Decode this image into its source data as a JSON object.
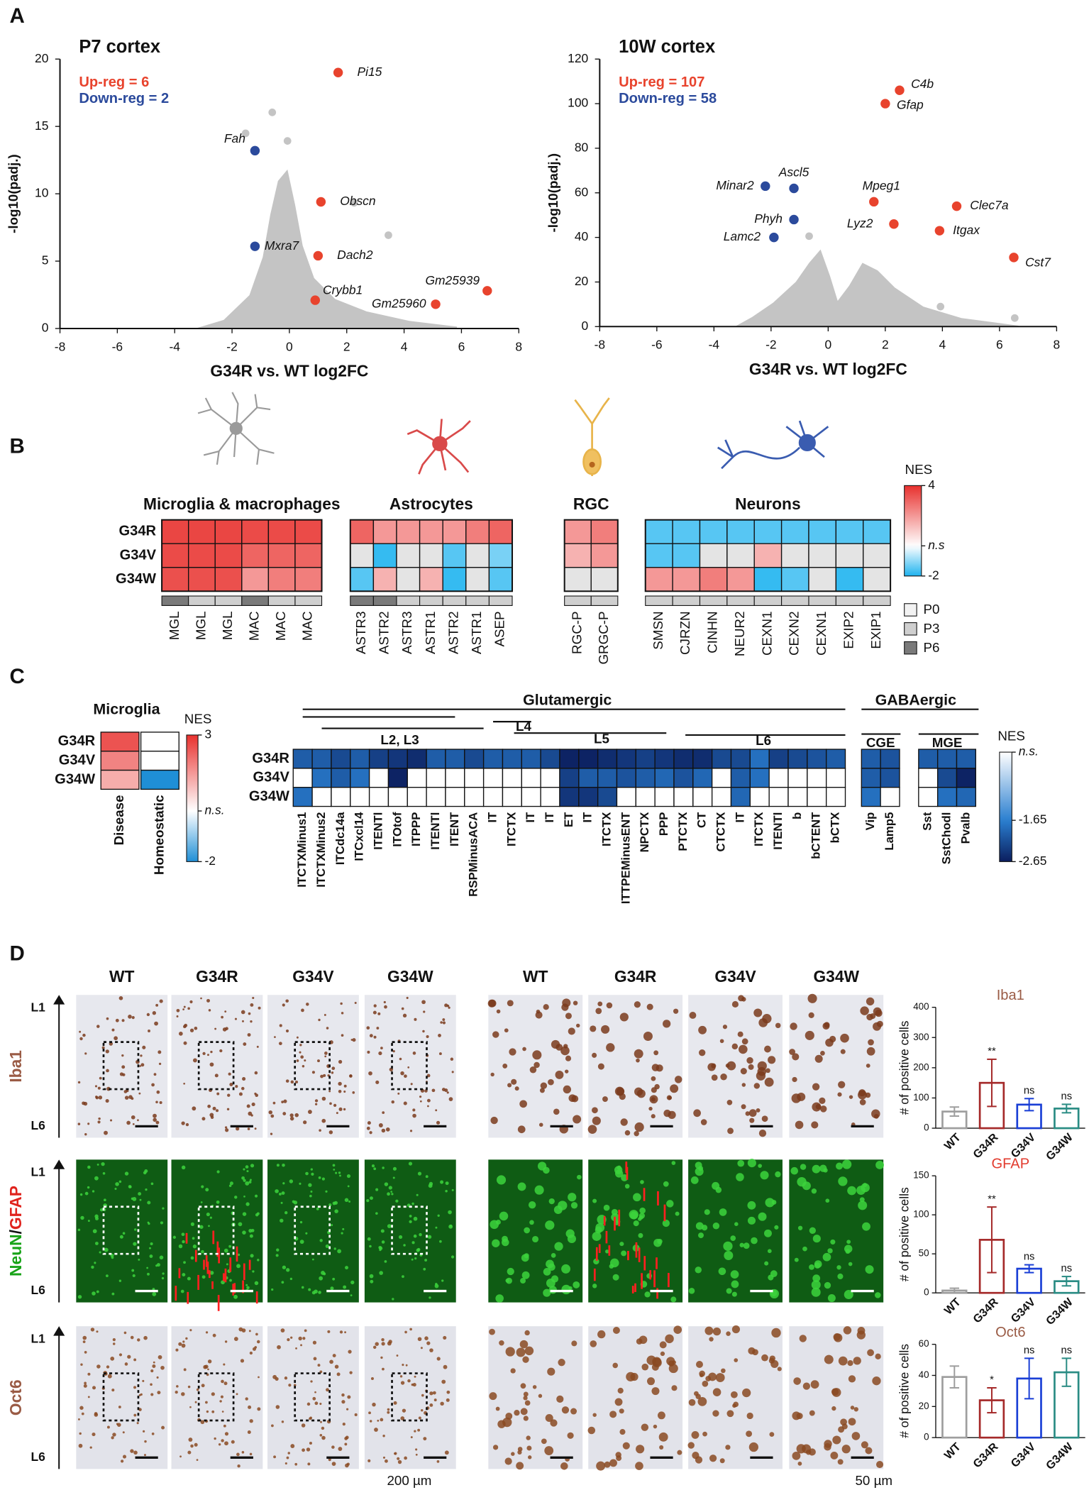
{
  "panels": [
    "A",
    "B",
    "C",
    "D"
  ],
  "chart_data": [
    {
      "type": "scatter",
      "title": "P7 cortex",
      "annotations": [
        "Up-reg = 6",
        "Down-reg = 2"
      ],
      "x_label": "G34R vs. WT log2FC",
      "y_label": "-log10(padj.)",
      "xlim": [
        -8,
        8
      ],
      "xticks": [
        -8,
        -6,
        -4,
        -2,
        0,
        2,
        4,
        6,
        8
      ],
      "ylim": [
        0,
        20
      ],
      "yticks": [
        0,
        5,
        10,
        15,
        20
      ],
      "series": [
        {
          "color": "#e8432d",
          "x": [
            1.7,
            1.1,
            1.0,
            0.9,
            6.9,
            5.1
          ],
          "values": [
            19.0,
            9.4,
            5.4,
            2.1,
            2.8,
            1.8
          ],
          "point_labels": [
            "Pi15",
            "Obscn",
            "Dach2",
            "Crybb1",
            "Gm25939",
            "Gm25960"
          ]
        },
        {
          "color": "#2b4a9c",
          "x": [
            -1.2,
            -1.2
          ],
          "values": [
            13.2,
            6.1
          ],
          "point_labels": [
            "Fah",
            "Mxra7"
          ]
        }
      ]
    },
    {
      "type": "scatter",
      "title": "10W cortex",
      "annotations": [
        "Up-reg = 107",
        "Down-reg = 58"
      ],
      "x_label": "G34R vs. WT log2FC",
      "y_label": "-log10(padj.)",
      "xlim": [
        -8,
        8
      ],
      "xticks": [
        -8,
        -6,
        -4,
        -2,
        0,
        2,
        4,
        6,
        8
      ],
      "ylim": [
        0,
        120
      ],
      "yticks": [
        0,
        20,
        40,
        60,
        80,
        100,
        120
      ],
      "series": [
        {
          "color": "#e8432d",
          "x": [
            2.5,
            2.0,
            1.6,
            2.3,
            4.5,
            3.9,
            6.5
          ],
          "values": [
            106,
            100,
            56,
            46,
            54,
            43,
            31
          ],
          "point_labels": [
            "C4b",
            "Gfap",
            "Mpeg1",
            "Lyz2",
            "Clec7a",
            "Itgax",
            "Cst7"
          ]
        },
        {
          "color": "#2b4a9c",
          "x": [
            -2.2,
            -1.2,
            -1.2,
            -1.9
          ],
          "values": [
            63,
            62,
            48,
            40
          ],
          "point_labels": [
            "Minar2",
            "Ascl5",
            "Phyh",
            "Lamc2"
          ]
        }
      ]
    },
    {
      "type": "bar",
      "title": "Iba1",
      "title_color": "#9a5b45",
      "y_label": "# of positive cells",
      "categories": [
        "WT",
        "G34R",
        "G34V",
        "G34W"
      ],
      "values": [
        55,
        150,
        78,
        65
      ],
      "errors": [
        15,
        78,
        20,
        14
      ],
      "annotations": [
        null,
        "**",
        "ns",
        "ns"
      ],
      "colors": [
        "#9e9e9e",
        "#a52a2a",
        "#1a3fd6",
        "#2a8c84"
      ],
      "ylim": [
        0,
        400
      ],
      "yticks": [
        0,
        100,
        200,
        300,
        400
      ]
    },
    {
      "type": "bar",
      "title": "GFAP",
      "title_color": "#e23b2e",
      "y_label": "# of positive cells",
      "categories": [
        "WT",
        "G34R",
        "G34V",
        "G34W"
      ],
      "values": [
        3,
        68,
        31,
        15
      ],
      "errors": [
        3,
        42,
        5,
        6
      ],
      "annotations": [
        null,
        "**",
        "ns",
        "ns"
      ],
      "colors": [
        "#9e9e9e",
        "#a52a2a",
        "#1a3fd6",
        "#2a8c84"
      ],
      "ylim": [
        0,
        150
      ],
      "yticks": [
        0,
        50,
        100,
        150
      ]
    },
    {
      "type": "bar",
      "title": "Oct6",
      "title_color": "#9a5b45",
      "y_label": "# of positive cells",
      "categories": [
        "WT",
        "G34R",
        "G34V",
        "G34W"
      ],
      "values": [
        39,
        24,
        38,
        42
      ],
      "errors": [
        7,
        8,
        13,
        9
      ],
      "annotations": [
        null,
        "*",
        "ns",
        "ns"
      ],
      "colors": [
        "#9e9e9e",
        "#a52a2a",
        "#1a3fd6",
        "#2a8c84"
      ],
      "ylim": [
        0,
        60
      ],
      "yticks": [
        0,
        20,
        40,
        60
      ]
    }
  ],
  "heatmap_b": {
    "rows": [
      "G34R",
      "G34V",
      "G34W"
    ],
    "groups": [
      {
        "title": "Microglia & macrophages",
        "columns": [
          "MGL",
          "MGL",
          "MGL",
          "MAC",
          "MAC",
          "MAC"
        ],
        "stages": [
          "P6",
          "P3",
          "P3",
          "P6",
          "P3",
          "P3"
        ],
        "values": [
          [
            3.6,
            3.6,
            3.6,
            3.5,
            3.5,
            3.5
          ],
          [
            3.5,
            3.5,
            3.5,
            3.0,
            3.0,
            3.0
          ],
          [
            3.4,
            3.4,
            3.4,
            2.0,
            2.5,
            2.5
          ]
        ]
      },
      {
        "title": "Astrocytes",
        "columns": [
          "ASTR3",
          "ASTR2",
          "ASTR3",
          "ASTR1",
          "ASTR2",
          "ASTR1",
          "ASEP"
        ],
        "stages": [
          "P6",
          "P6",
          "P3",
          "P3",
          "P3",
          "P3",
          "P3"
        ],
        "values": [
          [
            3.0,
            2.0,
            2.0,
            2.0,
            2.0,
            2.5,
            3.0
          ],
          [
            null,
            -1.8,
            null,
            null,
            -1.5,
            null,
            -1.2
          ],
          [
            -1.5,
            1.5,
            null,
            1.5,
            -1.8,
            null,
            -1.5
          ]
        ]
      },
      {
        "title": "RGC",
        "columns": [
          "RGC-P",
          "GRGC-P"
        ],
        "stages": [
          "P3",
          "P3"
        ],
        "values": [
          [
            2.0,
            2.5
          ],
          [
            1.5,
            2.0
          ],
          [
            null,
            null
          ]
        ]
      },
      {
        "title": "Neurons",
        "columns": [
          "SMSN",
          "CJRZN",
          "CINHN",
          "NEUR2",
          "CEXN1",
          "CEXN2",
          "CEXN1",
          "EXIP2",
          "EXIP1"
        ],
        "stages": [
          "P3",
          "P3",
          "P3",
          "P3",
          "P3",
          "P3",
          "P3",
          "P3",
          "P3"
        ],
        "values": [
          [
            -1.5,
            -1.5,
            -1.5,
            -1.5,
            -1.5,
            -1.5,
            -1.5,
            -1.5,
            -1.5
          ],
          [
            -1.5,
            -1.5,
            null,
            null,
            1.5,
            null,
            null,
            null,
            null
          ],
          [
            2.0,
            2.0,
            2.5,
            2.0,
            -1.8,
            -1.5,
            null,
            -1.8,
            null
          ]
        ]
      }
    ],
    "colorbar": {
      "title": "NES",
      "lim": [
        -2,
        4
      ],
      "ticks": [
        4,
        {
          "value": 0,
          "label": "n.s"
        },
        -2
      ]
    },
    "stage_legend": [
      "P0",
      "P3",
      "P6"
    ],
    "stage_colors": [
      "#f2f2f2",
      "#cfcfcf",
      "#7a7a7a"
    ]
  },
  "heatmap_c": {
    "microglia": {
      "title": "Microglia",
      "rows": [
        "G34R",
        "G34V",
        "G34W"
      ],
      "columns": [
        "Disease",
        "Homeostatic"
      ],
      "values": [
        [
          2.5,
          null
        ],
        [
          1.8,
          null
        ],
        [
          1.2,
          -2.0
        ]
      ],
      "colorbar": {
        "title": "NES",
        "lim": [
          -2,
          3
        ],
        "ticks": [
          3,
          {
            "value": 0,
            "label": "n.s."
          },
          -2
        ]
      }
    },
    "glutamatergic": {
      "title": "Glutamergic",
      "layers": [
        "L2, L3",
        "L4",
        "L5",
        "L6"
      ],
      "rows": [
        "G34R",
        "G34V",
        "G34W"
      ],
      "columns": [
        "ITCTXMinus1",
        "ITCTXMinus2",
        "ITCdc14a",
        "ITCxcl14",
        "ITENTl",
        "ITOtof",
        "ITPPP",
        "ITENTl",
        "ITENT",
        "RSPMinusACA",
        "IT",
        "ITCTX",
        "IT",
        "IT",
        "ET",
        "IT",
        "ITCTX",
        "ITTPEMinusENT",
        "NPCTX",
        "PPP",
        "PTCTX",
        "CT",
        "CTCTX",
        "IT",
        "ITCTX",
        "ITENTl",
        "b",
        "bCTENT",
        "bCTX"
      ],
      "values": [
        [
          -2.0,
          -2.0,
          -2.2,
          -2.0,
          -2.3,
          -2.4,
          -2.5,
          -2.0,
          -2.0,
          -2.2,
          -2.0,
          -2.0,
          -2.0,
          -2.2,
          -2.6,
          -2.6,
          -2.5,
          -2.4,
          -2.3,
          -2.4,
          -2.5,
          -2.5,
          -2.2,
          -2.2,
          -1.8,
          -2.3,
          -2.2,
          -2.1,
          -2.0
        ],
        [
          null,
          -1.8,
          -2.0,
          -1.8,
          null,
          -2.6,
          null,
          null,
          null,
          null,
          null,
          null,
          null,
          null,
          -2.3,
          -2.0,
          -2.0,
          -2.1,
          -2.0,
          -1.9,
          -2.1,
          -1.9,
          null,
          -2.0,
          -1.8,
          null,
          null,
          null,
          null
        ],
        [
          -1.8,
          null,
          null,
          null,
          null,
          null,
          null,
          null,
          null,
          null,
          null,
          null,
          null,
          null,
          -2.4,
          -2.4,
          -2.2,
          null,
          null,
          null,
          null,
          null,
          null,
          -1.9,
          null,
          null,
          null,
          null,
          null
        ]
      ]
    },
    "gabaergic": {
      "title": "GABAergic",
      "groups": [
        {
          "title": "CGE",
          "columns": [
            "Vip",
            "Lamp5"
          ],
          "values": [
            [
              -2.0,
              -2.1
            ],
            [
              -2.0,
              -2.1
            ],
            [
              -1.8,
              null
            ]
          ]
        },
        {
          "title": "MGE",
          "columns": [
            "Sst",
            "SstChodl",
            "Pvalb"
          ],
          "values": [
            [
              -2.0,
              -2.0,
              -2.0
            ],
            [
              null,
              -2.2,
              -2.6
            ],
            [
              null,
              -1.8,
              -1.9
            ]
          ]
        }
      ]
    },
    "colorbar": {
      "title": "NES",
      "lim": [
        -2.65,
        0
      ],
      "ticks": [
        {
          "value": 0,
          "label": "n.s."
        },
        -1.65,
        -2.65
      ]
    }
  },
  "panel_d": {
    "columns_low": [
      "WT",
      "G34R",
      "G34V",
      "G34W"
    ],
    "columns_high": [
      "WT",
      "G34R",
      "G34V",
      "G34W"
    ],
    "rows": [
      [
        "Iba1"
      ],
      [
        "NeuN",
        "/",
        "GFAP"
      ],
      [
        "Oct6"
      ]
    ],
    "layer_top": [
      "L1",
      "L1",
      "L1"
    ],
    "layer_bottom": [
      "L6",
      "L6",
      "L6"
    ],
    "scale_low": "200 µm",
    "scale_high": "50 µm"
  }
}
